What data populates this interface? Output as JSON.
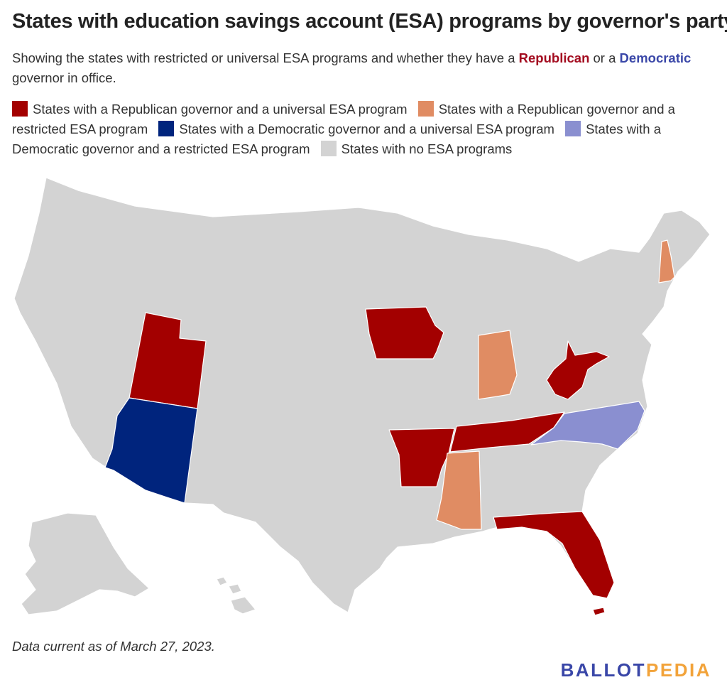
{
  "header": {
    "title": "States with education savings account (ESA) programs by governor's party",
    "subtitle_part1": "Showing the states with restricted or universal ESA programs and whether they have a ",
    "subtitle_rep": "Republican",
    "subtitle_part2": " or a ",
    "subtitle_dem": "Democratic",
    "subtitle_part3": " governor in office."
  },
  "legend": [
    {
      "label": "States with a Republican governor and a universal ESA program",
      "color": "#a30000"
    },
    {
      "label": "States with a Republican governor and a restricted ESA program",
      "color": "#e08c63"
    },
    {
      "label": "States with a Democratic governor and a universal ESA program",
      "color": "#00247d"
    },
    {
      "label": "States with a Democratic governor and a restricted ESA program",
      "color": "#8a8fd0"
    },
    {
      "label": "States with no ESA programs",
      "color": "#d3d3d3"
    }
  ],
  "colors": {
    "rep_universal": "#a30000",
    "rep_restricted": "#e08c63",
    "dem_universal": "#00247d",
    "dem_restricted": "#8a8fd0",
    "none": "#d3d3d3",
    "border": "#ffffff"
  },
  "states": [
    {
      "name": "Utah",
      "category": "rep_universal"
    },
    {
      "name": "Arizona",
      "category": "dem_universal"
    },
    {
      "name": "Iowa",
      "category": "rep_universal"
    },
    {
      "name": "Arkansas",
      "category": "rep_universal"
    },
    {
      "name": "Tennessee",
      "category": "rep_universal"
    },
    {
      "name": "West Virginia",
      "category": "rep_universal"
    },
    {
      "name": "Florida",
      "category": "rep_universal"
    },
    {
      "name": "Indiana",
      "category": "rep_restricted"
    },
    {
      "name": "Mississippi",
      "category": "rep_restricted"
    },
    {
      "name": "New Hampshire",
      "category": "rep_restricted"
    },
    {
      "name": "North Carolina",
      "category": "dem_restricted"
    }
  ],
  "footnote": "Data current as of March 27, 2023.",
  "logo": {
    "part1": "BALLOT",
    "part2": "PEDIA"
  }
}
